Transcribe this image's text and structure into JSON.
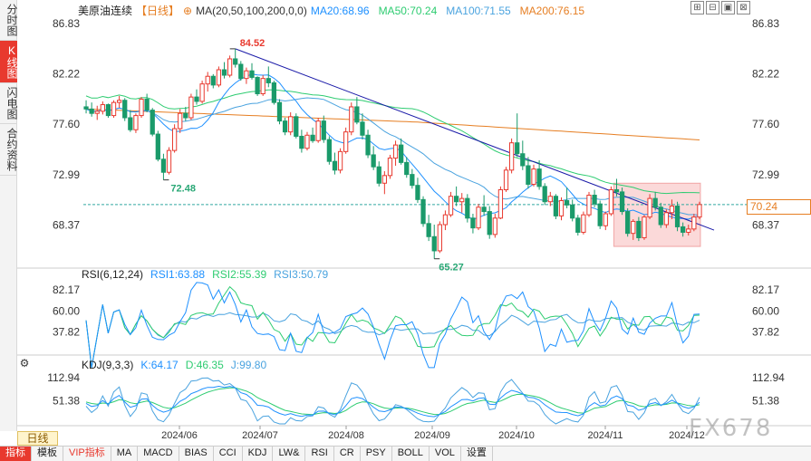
{
  "sidebar": {
    "tabs": [
      {
        "label": "分时图",
        "active": false
      },
      {
        "label": "K线图",
        "active": true
      },
      {
        "label": "闪电图",
        "active": false
      },
      {
        "label": "合约资料",
        "active": false
      }
    ]
  },
  "header": {
    "title": "美原油连续",
    "period": "【日线】",
    "settings_icon": "⊕",
    "ma_label": "MA(20,50,100,200,0,0)",
    "ma_items": [
      {
        "label": "MA20:68.96",
        "color": "#1e90ff"
      },
      {
        "label": "MA50:70.24",
        "color": "#2ecc71"
      },
      {
        "label": "MA100:71.55",
        "color": "#4aa3df"
      },
      {
        "label": "MA200:76.15",
        "color": "#e67e22"
      }
    ]
  },
  "window_icons": [
    "⊞",
    "⊟",
    "▣",
    "⊠"
  ],
  "price_axis": {
    "left": [
      "86.83",
      "82.22",
      "77.60",
      "72.99",
      "68.37"
    ],
    "right": [
      "86.83",
      "82.22",
      "77.60",
      "72.99",
      "68.37"
    ],
    "current_price": "70.24"
  },
  "annotations": {
    "high": "84.52",
    "low1": "72.48",
    "low2": "65.27"
  },
  "rsi": {
    "header": "RSI(6,12,24)",
    "items": [
      {
        "label": "RSI1:63.88",
        "color": "#1e90ff"
      },
      {
        "label": "RSI2:55.39",
        "color": "#2ecc71"
      },
      {
        "label": "RSI3:50.79",
        "color": "#4aa3df"
      }
    ],
    "levels": [
      "82.17",
      "60.00",
      "37.82"
    ]
  },
  "kdj": {
    "header": "KDJ(9,3,3)",
    "items": [
      {
        "label": "K:64.17",
        "color": "#1e90ff"
      },
      {
        "label": "D:46.35",
        "color": "#2ecc71"
      },
      {
        "label": "J:99.80",
        "color": "#4aa3df"
      }
    ],
    "levels": [
      "112.94",
      "51.38"
    ]
  },
  "dates": [
    "2024/06",
    "2024/07",
    "2024/08",
    "2024/09",
    "2024/10",
    "2024/11",
    "2024/12"
  ],
  "period_tab": "日线",
  "toolbar": [
    "指标",
    "模板",
    "VIP指标",
    "MA",
    "MACD",
    "BIAS",
    "CCI",
    "KDJ",
    "LW&",
    "RSI",
    "CR",
    "PSY",
    "BOLL",
    "VOL",
    "设置"
  ],
  "watermark": "FX678",
  "chart_data": {
    "type": "candlestick",
    "title": "美原油连续【日线】",
    "ylim": [
      64.5,
      87.5
    ],
    "trendline": {
      "from": 84.52,
      "to": 67.9
    },
    "ohlc": [
      [
        79.2,
        79.8,
        78.6,
        79.0
      ],
      [
        79.0,
        79.6,
        78.3,
        78.6
      ],
      [
        78.6,
        79.3,
        78.0,
        78.8
      ],
      [
        78.8,
        79.7,
        78.5,
        79.4
      ],
      [
        79.4,
        79.5,
        78.2,
        78.4
      ],
      [
        78.4,
        79.8,
        78.2,
        79.6
      ],
      [
        79.6,
        80.2,
        79.1,
        79.8
      ],
      [
        79.8,
        80.0,
        77.9,
        78.2
      ],
      [
        78.2,
        78.9,
        76.9,
        77.1
      ],
      [
        77.1,
        78.6,
        76.8,
        78.4
      ],
      [
        78.4,
        80.1,
        78.2,
        79.9
      ],
      [
        79.9,
        80.4,
        78.7,
        78.9
      ],
      [
        78.9,
        79.1,
        76.5,
        76.7
      ],
      [
        76.7,
        77.0,
        74.2,
        74.4
      ],
      [
        74.4,
        74.9,
        72.5,
        73.2
      ],
      [
        73.2,
        75.5,
        73.0,
        75.2
      ],
      [
        75.2,
        77.6,
        75.0,
        77.2
      ],
      [
        77.2,
        79.0,
        76.8,
        78.6
      ],
      [
        78.6,
        79.2,
        77.9,
        78.2
      ],
      [
        78.2,
        80.4,
        78.0,
        80.1
      ],
      [
        80.1,
        80.8,
        79.4,
        79.7
      ],
      [
        79.7,
        81.6,
        79.5,
        81.3
      ],
      [
        81.3,
        82.4,
        80.6,
        82.0
      ],
      [
        82.0,
        82.2,
        80.9,
        81.2
      ],
      [
        81.2,
        82.9,
        81.0,
        82.6
      ],
      [
        82.6,
        83.3,
        81.8,
        82.1
      ],
      [
        82.1,
        83.9,
        81.9,
        83.6
      ],
      [
        83.6,
        84.52,
        82.8,
        83.1
      ],
      [
        83.1,
        83.4,
        81.6,
        81.8
      ],
      [
        81.8,
        82.8,
        81.3,
        82.5
      ],
      [
        82.5,
        83.2,
        81.7,
        81.9
      ],
      [
        81.9,
        82.0,
        80.2,
        80.4
      ],
      [
        80.4,
        82.1,
        80.2,
        81.8
      ],
      [
        81.8,
        82.9,
        81.0,
        81.4
      ],
      [
        81.4,
        81.6,
        79.4,
        79.6
      ],
      [
        79.6,
        79.9,
        77.6,
        77.9
      ],
      [
        77.9,
        78.2,
        76.6,
        76.9
      ],
      [
        76.9,
        78.7,
        76.6,
        78.3
      ],
      [
        78.3,
        78.6,
        76.3,
        76.5
      ],
      [
        76.5,
        77.1,
        75.0,
        75.4
      ],
      [
        75.4,
        76.9,
        75.2,
        76.6
      ],
      [
        76.6,
        77.3,
        75.9,
        76.1
      ],
      [
        76.1,
        78.2,
        75.9,
        77.9
      ],
      [
        77.9,
        78.4,
        75.9,
        76.2
      ],
      [
        76.2,
        76.5,
        73.9,
        74.2
      ],
      [
        74.2,
        75.0,
        73.0,
        73.4
      ],
      [
        73.4,
        75.4,
        73.1,
        75.1
      ],
      [
        75.1,
        77.3,
        74.9,
        76.9
      ],
      [
        76.9,
        79.6,
        76.6,
        79.2
      ],
      [
        79.2,
        80.1,
        77.6,
        77.8
      ],
      [
        77.8,
        78.6,
        76.2,
        76.6
      ],
      [
        76.6,
        77.1,
        74.5,
        74.8
      ],
      [
        74.8,
        75.6,
        73.4,
        73.7
      ],
      [
        73.7,
        74.2,
        71.9,
        72.2
      ],
      [
        72.2,
        73.3,
        71.2,
        72.9
      ],
      [
        72.9,
        74.8,
        72.6,
        74.5
      ],
      [
        74.5,
        76.1,
        73.8,
        75.7
      ],
      [
        75.7,
        76.3,
        73.9,
        74.1
      ],
      [
        74.1,
        74.6,
        72.7,
        73.0
      ],
      [
        73.0,
        73.5,
        71.7,
        72.0
      ],
      [
        72.0,
        72.7,
        70.4,
        70.7
      ],
      [
        70.7,
        71.0,
        68.2,
        68.5
      ],
      [
        68.5,
        69.3,
        66.9,
        67.3
      ],
      [
        67.3,
        68.4,
        65.27,
        66.0
      ],
      [
        66.0,
        68.7,
        65.8,
        68.4
      ],
      [
        68.4,
        69.7,
        67.9,
        69.3
      ],
      [
        69.3,
        71.4,
        69.1,
        71.0
      ],
      [
        71.0,
        71.9,
        70.1,
        70.5
      ],
      [
        70.5,
        71.3,
        69.5,
        70.8
      ],
      [
        70.8,
        71.2,
        68.6,
        69.0
      ],
      [
        69.0,
        69.4,
        67.6,
        68.1
      ],
      [
        68.1,
        70.3,
        67.9,
        70.0
      ],
      [
        70.0,
        71.1,
        69.2,
        69.6
      ],
      [
        69.6,
        70.1,
        67.1,
        67.5
      ],
      [
        67.5,
        69.4,
        67.2,
        69.0
      ],
      [
        69.0,
        71.9,
        68.9,
        71.6
      ],
      [
        71.6,
        73.7,
        71.4,
        73.4
      ],
      [
        73.4,
        76.3,
        73.1,
        75.9
      ],
      [
        75.9,
        78.6,
        74.6,
        74.9
      ],
      [
        74.9,
        76.1,
        73.4,
        73.8
      ],
      [
        73.8,
        74.6,
        71.7,
        72.1
      ],
      [
        72.1,
        73.9,
        71.9,
        73.5
      ],
      [
        73.5,
        74.3,
        71.6,
        71.9
      ],
      [
        71.9,
        72.2,
        70.2,
        70.5
      ],
      [
        70.5,
        71.4,
        70.1,
        71.0
      ],
      [
        71.0,
        71.2,
        68.9,
        69.2
      ],
      [
        69.2,
        70.9,
        68.8,
        70.6
      ],
      [
        70.6,
        71.8,
        69.9,
        70.2
      ],
      [
        70.2,
        70.7,
        68.7,
        69.0
      ],
      [
        69.0,
        69.3,
        67.4,
        67.7
      ],
      [
        67.7,
        69.6,
        67.5,
        69.3
      ],
      [
        69.3,
        71.4,
        69.1,
        71.1
      ],
      [
        71.1,
        71.6,
        70.0,
        70.3
      ],
      [
        70.3,
        70.6,
        68.0,
        68.3
      ],
      [
        68.3,
        69.6,
        67.9,
        69.4
      ],
      [
        69.4,
        71.9,
        69.2,
        71.6
      ],
      [
        71.6,
        72.6,
        71.0,
        71.4
      ],
      [
        71.4,
        71.8,
        69.3,
        69.6
      ],
      [
        69.6,
        69.9,
        67.3,
        67.6
      ],
      [
        67.6,
        68.9,
        67.0,
        68.7
      ],
      [
        68.7,
        69.1,
        66.9,
        67.2
      ],
      [
        67.2,
        69.3,
        67.0,
        69.1
      ],
      [
        69.1,
        71.2,
        68.9,
        70.8
      ],
      [
        70.8,
        71.4,
        69.7,
        70.0
      ],
      [
        70.0,
        70.4,
        68.1,
        68.4
      ],
      [
        68.4,
        69.8,
        68.1,
        69.5
      ],
      [
        69.5,
        70.7,
        68.9,
        70.1
      ],
      [
        70.1,
        70.5,
        67.8,
        68.2
      ],
      [
        68.2,
        68.6,
        67.3,
        67.7
      ],
      [
        67.7,
        68.4,
        67.4,
        68.0
      ],
      [
        68.0,
        69.4,
        67.8,
        69.1
      ],
      [
        69.1,
        70.5,
        68.9,
        70.24
      ]
    ]
  }
}
